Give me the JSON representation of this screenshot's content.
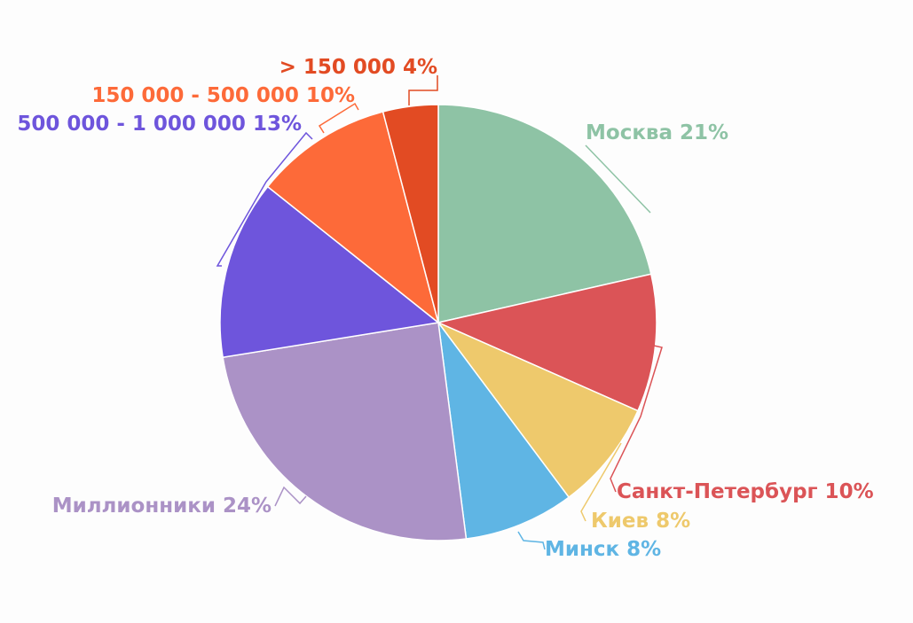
{
  "chart_data": {
    "type": "pie",
    "title": "",
    "slices": [
      {
        "label": "Москва",
        "value": 21,
        "display": "Москва 21%",
        "color": "#8ec3a5"
      },
      {
        "label": "Санкт-Петербург",
        "value": 10,
        "display": "Санкт-Петербург 10%",
        "color": "#db5457"
      },
      {
        "label": "Киев",
        "value": 8,
        "display": "Киев 8%",
        "color": "#eec96c"
      },
      {
        "label": "Минск",
        "value": 8,
        "display": "Минск 8%",
        "color": "#5fb5e4"
      },
      {
        "label": "Миллионники",
        "value": 24,
        "display": "Миллионники 24%",
        "color": "#ab92c6"
      },
      {
        "label": "500 000 - 1 000 000",
        "value": 13,
        "display": "500 000 - 1 000 000 13%",
        "color": "#6e55dc"
      },
      {
        "label": "150 000 - 500 000",
        "value": 10,
        "display": "150 000 - 500 000 10%",
        "color": "#fd6a39"
      },
      {
        "label": "> 150 000",
        "value": 4,
        "display": "> 150 000 4%",
        "color": "#e24b23"
      }
    ],
    "start_angle": "top",
    "direction": "clockwise",
    "legend": "none"
  }
}
